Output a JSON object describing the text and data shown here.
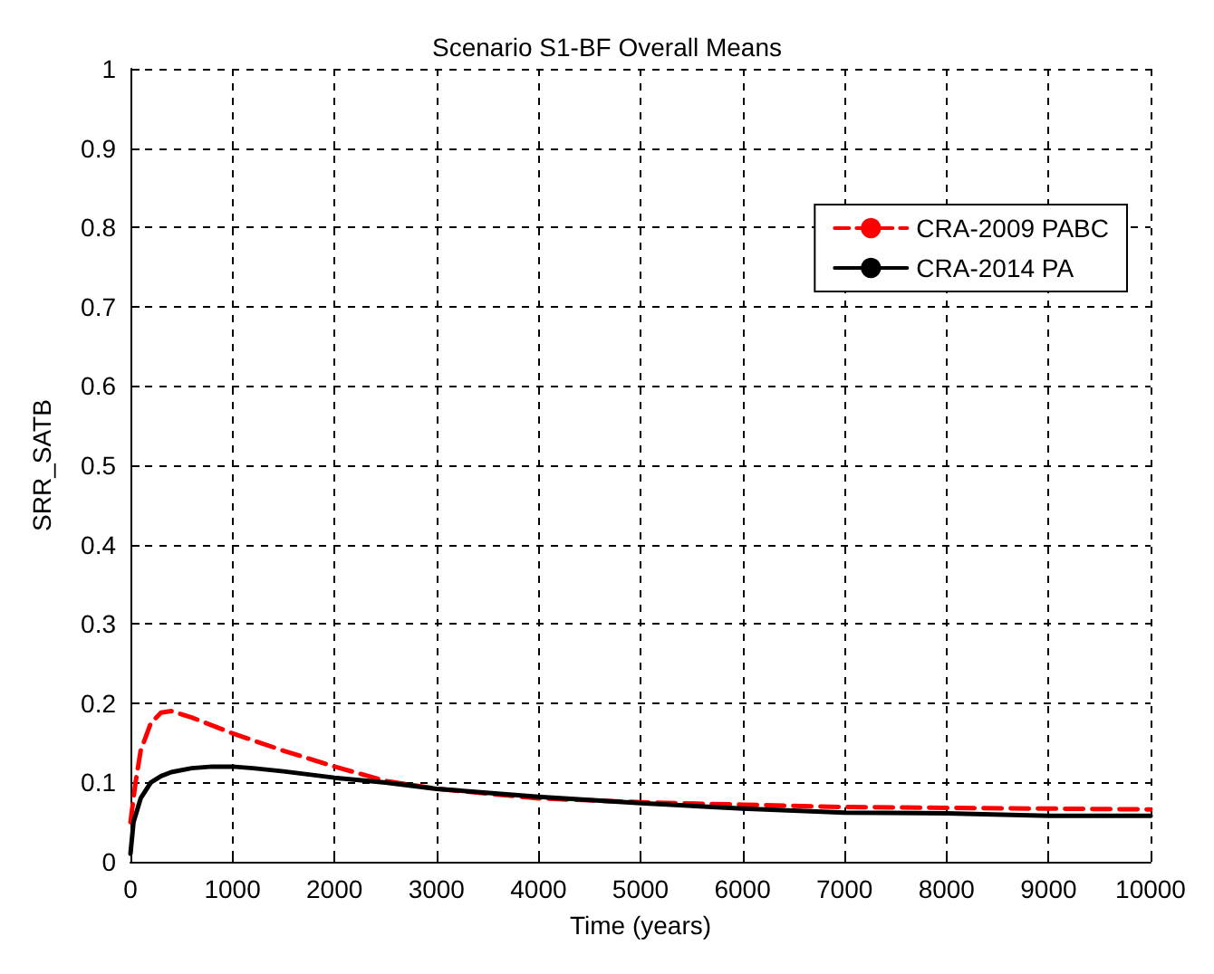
{
  "chart_data": {
    "type": "line",
    "title": "Scenario S1-BF Overall Means",
    "xlabel": "Time (years)",
    "ylabel": "SRR_SATB",
    "xlim": [
      0,
      10000
    ],
    "xticks": [
      0,
      1000,
      2000,
      3000,
      4000,
      5000,
      6000,
      7000,
      8000,
      9000,
      10000
    ],
    "ylim": [
      0,
      1
    ],
    "yticks": [
      0,
      0.1,
      0.2,
      0.3,
      0.4,
      0.5,
      0.6,
      0.7,
      0.8,
      0.9,
      1
    ],
    "grid": true,
    "legend": "top right",
    "marker": "none",
    "series": [
      {
        "name": "CRA-2009 PABC",
        "color": "#ff0000",
        "line_style": "dashed",
        "x": [
          0,
          50,
          100,
          200,
          300,
          400,
          600,
          800,
          1000,
          1500,
          2000,
          2500,
          3000,
          4000,
          5000,
          6000,
          7000,
          8000,
          9000,
          10000
        ],
        "values": [
          0.05,
          0.1,
          0.14,
          0.175,
          0.188,
          0.19,
          0.182,
          0.172,
          0.162,
          0.14,
          0.12,
          0.102,
          0.092,
          0.08,
          0.075,
          0.072,
          0.069,
          0.068,
          0.067,
          0.066
        ]
      },
      {
        "name": "CRA-2014 PA",
        "color": "#000000",
        "line_style": "solid",
        "x": [
          0,
          30,
          100,
          200,
          300,
          400,
          600,
          800,
          1000,
          1200,
          1500,
          2000,
          2500,
          3000,
          4000,
          5000,
          6000,
          7000,
          8000,
          9000,
          10000
        ],
        "values": [
          0.01,
          0.05,
          0.08,
          0.1,
          0.108,
          0.113,
          0.118,
          0.12,
          0.12,
          0.118,
          0.114,
          0.106,
          0.1,
          0.092,
          0.082,
          0.074,
          0.067,
          0.062,
          0.061,
          0.058,
          0.058
        ]
      }
    ]
  }
}
